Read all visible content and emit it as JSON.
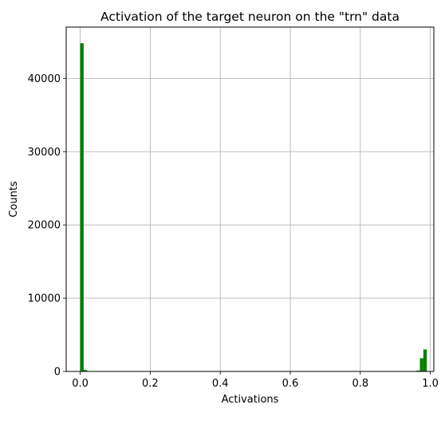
{
  "chart_data": {
    "type": "bar",
    "title": "Activation of the target neuron on the \"trn\" data",
    "xlabel": "Activations",
    "ylabel": "Counts",
    "xlim": [
      -0.04,
      1.01
    ],
    "ylim": [
      0,
      47000
    ],
    "grid": true,
    "bar_color": "#008000",
    "bin_width": 0.0098,
    "x_ticks": [
      0.0,
      0.2,
      0.4,
      0.6,
      0.8,
      1.0
    ],
    "x_tick_labels": [
      "0.0",
      "0.2",
      "0.4",
      "0.6",
      "0.8",
      "1.0"
    ],
    "y_ticks": [
      0,
      10000,
      20000,
      30000,
      40000
    ],
    "y_tick_labels": [
      "0",
      "10000",
      "20000",
      "30000",
      "40000"
    ],
    "bins": [
      {
        "x": 0.0,
        "value": 44800
      },
      {
        "x": 0.0098,
        "value": 200
      },
      {
        "x": 0.0196,
        "value": 60
      },
      {
        "x": 0.9506,
        "value": 40
      },
      {
        "x": 0.9604,
        "value": 120
      },
      {
        "x": 0.9702,
        "value": 1800
      },
      {
        "x": 0.98,
        "value": 3000
      }
    ]
  }
}
